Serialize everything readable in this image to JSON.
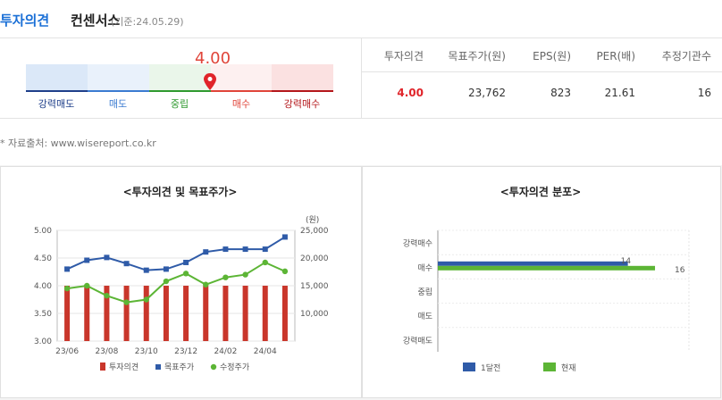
{
  "header": {
    "title_main": "투자의견",
    "title_sub": "컨센서스",
    "date": "(기준:24.05.29)"
  },
  "gauge": {
    "value_label": "4.00",
    "value": 4.0,
    "labels": [
      "강력매도",
      "매도",
      "중립",
      "매수",
      "강력매수"
    ],
    "label_colors": [
      "#1f3f8a",
      "#3b7bd1",
      "#2f9a2f",
      "#e0453a",
      "#b4171b"
    ]
  },
  "summary_table": {
    "headers": [
      "투자의견",
      "목표주가(원)",
      "EPS(원)",
      "PER(배)",
      "추정기관수"
    ],
    "values": [
      "4.00",
      "23,762",
      "823",
      "21.61",
      "16"
    ]
  },
  "source_note": "* 자료출처: www.wisereport.co.kr",
  "left_panel_title": "<투자의견 및 목표주가>",
  "right_panel_title": "<투자의견 분포>",
  "chart_data": [
    {
      "type": "bar+line",
      "title": "<투자의견 및 목표주가>",
      "unit_right": "(원)",
      "x_ticks": [
        "23/06",
        "23/08",
        "23/10",
        "23/12",
        "24/02",
        "24/04"
      ],
      "y_left_ticks": [
        "5.00",
        "4.50",
        "4.00",
        "3.50",
        "3.00"
      ],
      "y_left_range": [
        3.0,
        5.0
      ],
      "y_right_ticks": [
        "25,000",
        "20,000",
        "15,000",
        "10,000"
      ],
      "y_right_range": [
        5000,
        25000
      ],
      "series": [
        {
          "name": "투자의견",
          "kind": "bar",
          "color": "#c9362b",
          "values": [
            4.0,
            4.0,
            4.0,
            4.0,
            4.0,
            4.0,
            4.0,
            4.0,
            4.0,
            4.0,
            4.0,
            4.0
          ]
        },
        {
          "name": "목표주가",
          "kind": "line",
          "color": "#2f5ba8",
          "values": [
            18000,
            19600,
            20100,
            19000,
            17800,
            18000,
            19200,
            21100,
            21600,
            21600,
            21600,
            23800
          ]
        },
        {
          "name": "수정주가",
          "kind": "line",
          "color": "#5cb535",
          "values": [
            14500,
            15000,
            13200,
            12000,
            12500,
            15800,
            17200,
            15200,
            16500,
            17000,
            19200,
            17600
          ]
        }
      ]
    },
    {
      "type": "bar",
      "orientation": "horizontal",
      "title": "<투자의견 분포>",
      "categories": [
        "강력매수",
        "매수",
        "중립",
        "매도",
        "강력매도"
      ],
      "series": [
        {
          "name": "1달전",
          "color": "#2f5ba8",
          "values": [
            0,
            14,
            0,
            0,
            0
          ]
        },
        {
          "name": "현재",
          "color": "#5cb535",
          "values": [
            0,
            16,
            0,
            0,
            0
          ]
        }
      ],
      "data_labels": [
        "14",
        "16"
      ]
    }
  ]
}
